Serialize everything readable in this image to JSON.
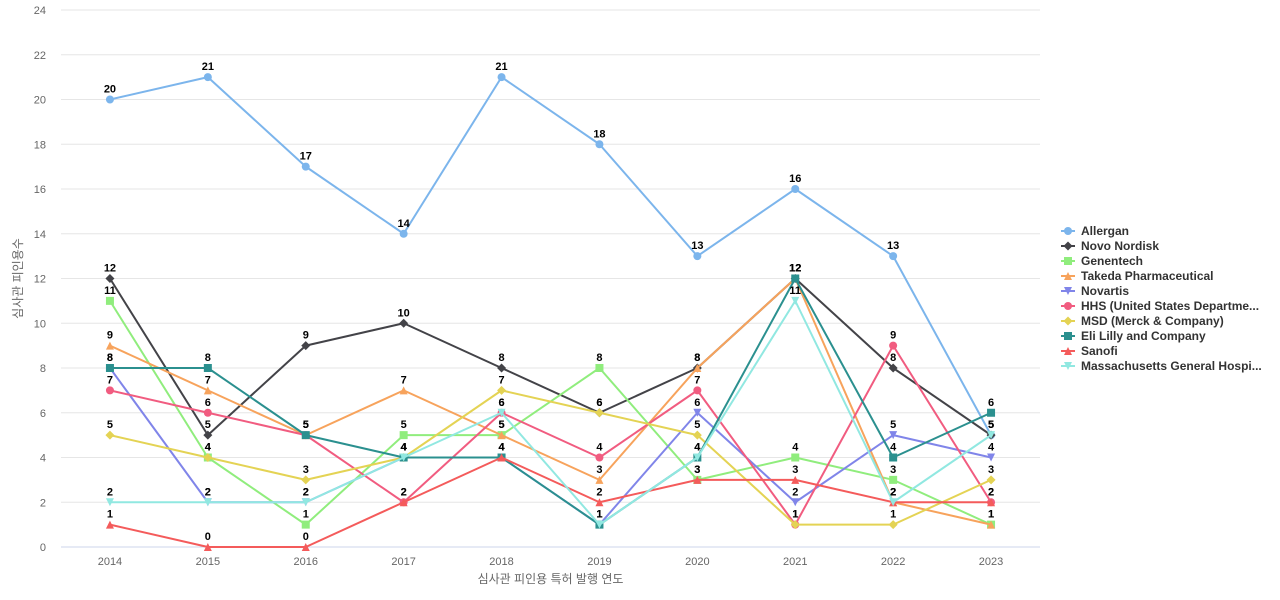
{
  "chart_data": {
    "type": "line",
    "title": "",
    "xlabel": "심사관 피인용 특허 발행 연도",
    "ylabel": "심사관 피인용수",
    "x": [
      "2014",
      "2015",
      "2016",
      "2017",
      "2018",
      "2019",
      "2020",
      "2021",
      "2022",
      "2023"
    ],
    "ylim": [
      0,
      24
    ],
    "yticks": [
      0,
      2,
      4,
      6,
      8,
      10,
      12,
      14,
      16,
      18,
      20,
      22,
      24
    ],
    "grid": true,
    "legend_position": "right",
    "series": [
      {
        "name": "Allergan",
        "color": "#7cb5ec",
        "marker": "circle",
        "values": [
          20,
          21,
          17,
          14,
          21,
          18,
          13,
          16,
          13,
          5
        ]
      },
      {
        "name": "Novo Nordisk",
        "color": "#434348",
        "marker": "diamond",
        "values": [
          12,
          5,
          9,
          10,
          8,
          6,
          8,
          12,
          8,
          5
        ]
      },
      {
        "name": "Genentech",
        "color": "#90ed7d",
        "marker": "square",
        "values": [
          11,
          4,
          1,
          5,
          5,
          8,
          3,
          4,
          3,
          1
        ]
      },
      {
        "name": "Takeda Pharmaceutical",
        "color": "#f7a35c",
        "marker": "triangle",
        "values": [
          9,
          7,
          5,
          7,
          5,
          3,
          8,
          12,
          2,
          1
        ]
      },
      {
        "name": "Novartis",
        "color": "#8085e9",
        "marker": "triangle-down",
        "values": [
          8,
          2,
          2,
          4,
          4,
          1,
          6,
          2,
          5,
          4
        ]
      },
      {
        "name": "HHS (United States Departme...",
        "color": "#f15c80",
        "marker": "circle",
        "values": [
          7,
          6,
          5,
          2,
          6,
          4,
          7,
          1,
          9,
          2
        ]
      },
      {
        "name": "MSD (Merck & Company)",
        "color": "#e4d354",
        "marker": "diamond",
        "values": [
          5,
          4,
          3,
          4,
          7,
          6,
          5,
          1,
          1,
          3
        ]
      },
      {
        "name": "Eli Lilly and Company",
        "color": "#2b908f",
        "marker": "square",
        "values": [
          8,
          8,
          5,
          4,
          4,
          1,
          4,
          12,
          4,
          6
        ]
      },
      {
        "name": "Sanofi",
        "color": "#f45b5b",
        "marker": "triangle",
        "values": [
          1,
          0,
          0,
          2,
          4,
          2,
          3,
          3,
          2,
          2
        ]
      },
      {
        "name": "Massachusetts General Hospi...",
        "color": "#91e8e1",
        "marker": "triangle-down",
        "values": [
          2,
          2,
          2,
          4,
          6,
          1,
          4,
          11,
          2,
          5
        ]
      }
    ]
  }
}
